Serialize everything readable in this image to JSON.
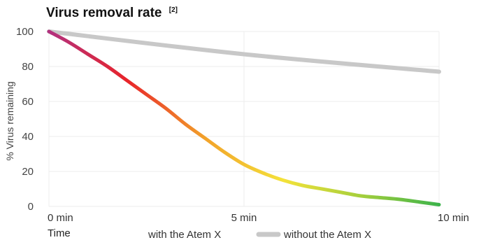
{
  "chart_data": {
    "type": "line",
    "title": "Virus removal rate",
    "title_ref": "[2]",
    "ylabel": "% Virus remaining",
    "xlabel": "Time",
    "ylim": [
      0,
      100
    ],
    "xlim": [
      0,
      10
    ],
    "y_ticks": [
      0,
      20,
      40,
      60,
      80,
      100
    ],
    "x_ticks": [
      {
        "value": 0,
        "label": "0 min"
      },
      {
        "value": 5,
        "label": "5 min"
      },
      {
        "value": 10,
        "label": "10 min"
      }
    ],
    "grid": true,
    "legend_position": "bottom",
    "series": [
      {
        "name": "with the Atem X",
        "x": [
          0,
          0.5,
          1,
          1.5,
          2,
          2.5,
          3,
          3.5,
          4,
          4.5,
          5,
          5.5,
          6,
          6.5,
          7,
          7.5,
          8,
          8.5,
          9,
          9.5,
          10
        ],
        "y": [
          100,
          94,
          87,
          80,
          72,
          64,
          56,
          47,
          39,
          31,
          24,
          19,
          15,
          12,
          10,
          8,
          6,
          5,
          4,
          2.5,
          1
        ],
        "color_stops": [
          "#b2317f",
          "#e8242a",
          "#f2a22a",
          "#f4e23a",
          "#a5cf3c",
          "#3cb34a"
        ]
      },
      {
        "name": "without the Atem X",
        "x": [
          0,
          5,
          10
        ],
        "y": [
          100,
          87,
          77
        ],
        "color": "#c8c8c8"
      }
    ]
  }
}
